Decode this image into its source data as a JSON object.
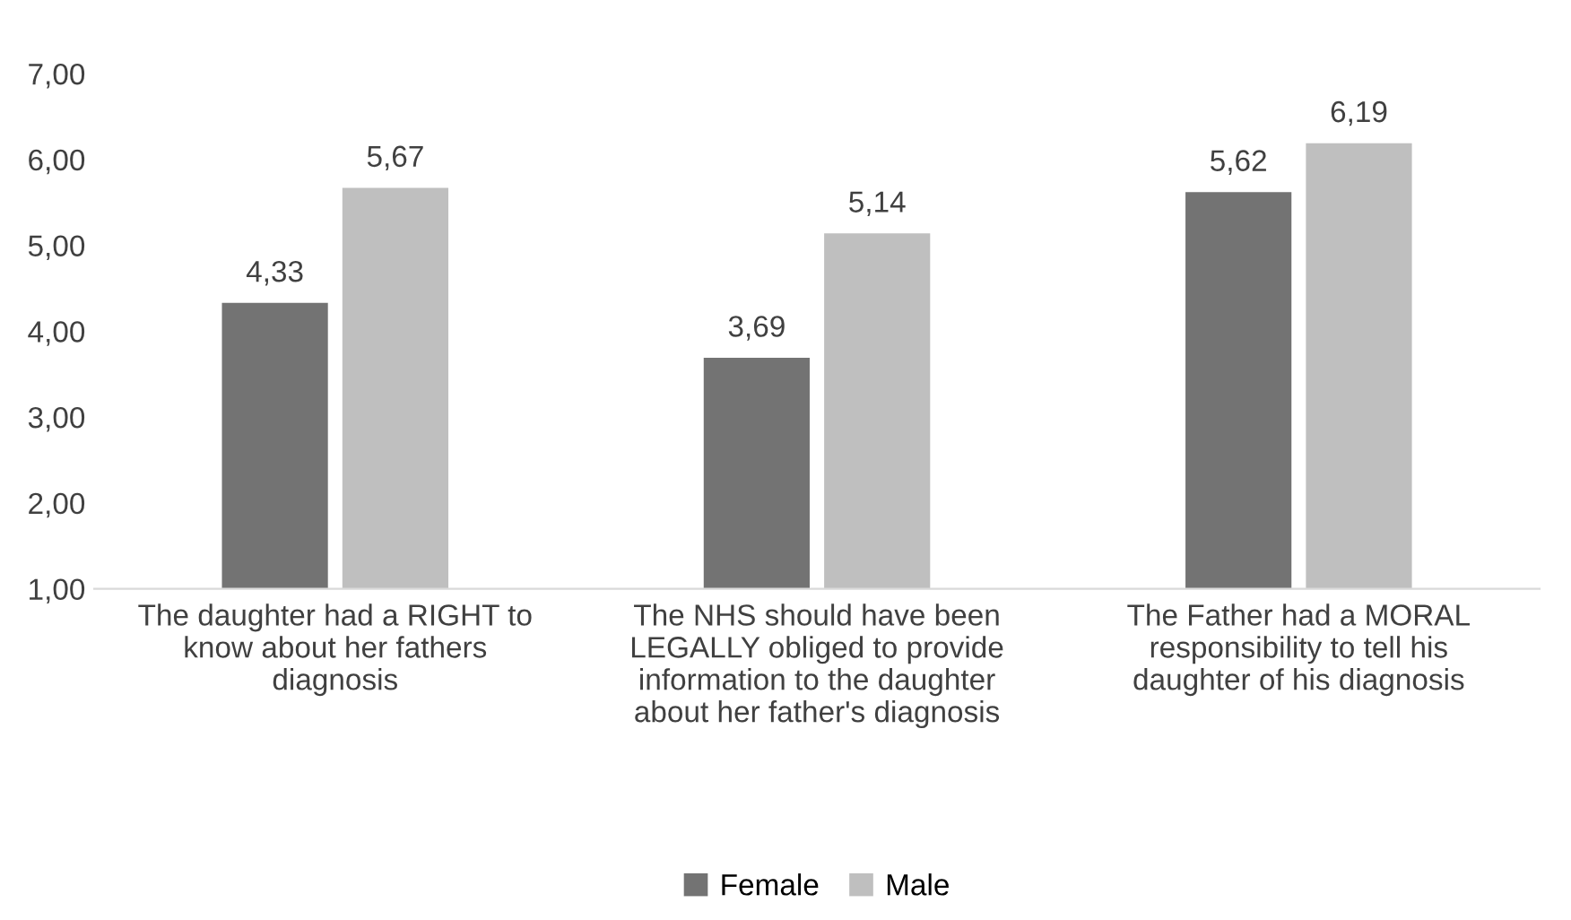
{
  "chart_data": {
    "type": "bar",
    "categories": [
      "The daughter had a RIGHT to\nknow about her fathers\ndiagnosis",
      "The NHS should have been\nLEGALLY obliged to provide\ninformation to the daughter\nabout her father's diagnosis",
      "The Father had a MORAL\nresponsibility to tell his\ndaughter of his diagnosis"
    ],
    "series": [
      {
        "name": "Female",
        "color": "#737373",
        "values": [
          4.33,
          3.69,
          5.62
        ],
        "value_labels": [
          "4,33",
          "3,69",
          "5,62"
        ]
      },
      {
        "name": "Male",
        "color": "#bfbfbf",
        "values": [
          5.67,
          5.14,
          6.19
        ],
        "value_labels": [
          "5,67",
          "5,14",
          "6,19"
        ]
      }
    ],
    "ylim": [
      1,
      7
    ],
    "yticks": [
      {
        "value": 1,
        "label": "1,00"
      },
      {
        "value": 2,
        "label": "2,00"
      },
      {
        "value": 3,
        "label": "3,00"
      },
      {
        "value": 4,
        "label": "4,00"
      },
      {
        "value": 5,
        "label": "5,00"
      },
      {
        "value": 6,
        "label": "6,00"
      },
      {
        "value": 7,
        "label": "7,00"
      }
    ],
    "grid": false,
    "legend": "bottom"
  }
}
